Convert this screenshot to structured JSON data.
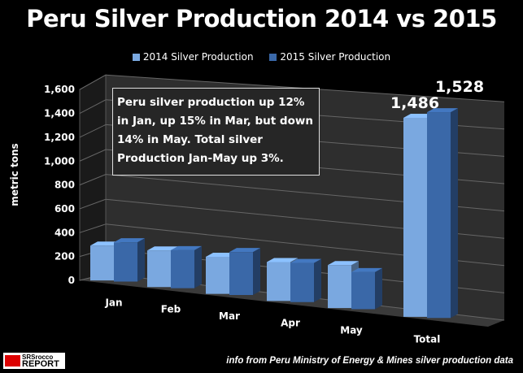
{
  "chart_data": {
    "type": "bar",
    "title": "Peru Silver Production 2014 vs 2015",
    "ylabel": "metric tons",
    "xlabel": "",
    "ylim": [
      0,
      1600
    ],
    "yticks": [
      "0",
      "200",
      "400",
      "600",
      "800",
      "1,000",
      "1,200",
      "1,400",
      "1,600"
    ],
    "categories": [
      "Jan",
      "Feb",
      "Mar",
      "Apr",
      "May",
      "Total"
    ],
    "series": [
      {
        "name": "2014 Silver Production",
        "color": "#7aa8e0",
        "values": [
          280,
          290,
          290,
          300,
          326,
          1486
        ]
      },
      {
        "name": "2015 Silver Production",
        "color": "#3a68a8",
        "values": [
          314,
          300,
          334,
          300,
          280,
          1528
        ]
      }
    ],
    "data_labels": {
      "total_2014": "1,486",
      "total_2015": "1,528"
    },
    "legend": "top",
    "grid": true,
    "style": "3d-column",
    "annotation": "Peru silver production up 12% in Jan, up 15% in Mar, but down 14% in May.  Total silver Production Jan-May up 3%."
  },
  "source": "info from Peru Ministry of Energy & Mines  silver production data",
  "logo": {
    "line1": "SRSrocco",
    "line2": "REPORT"
  }
}
